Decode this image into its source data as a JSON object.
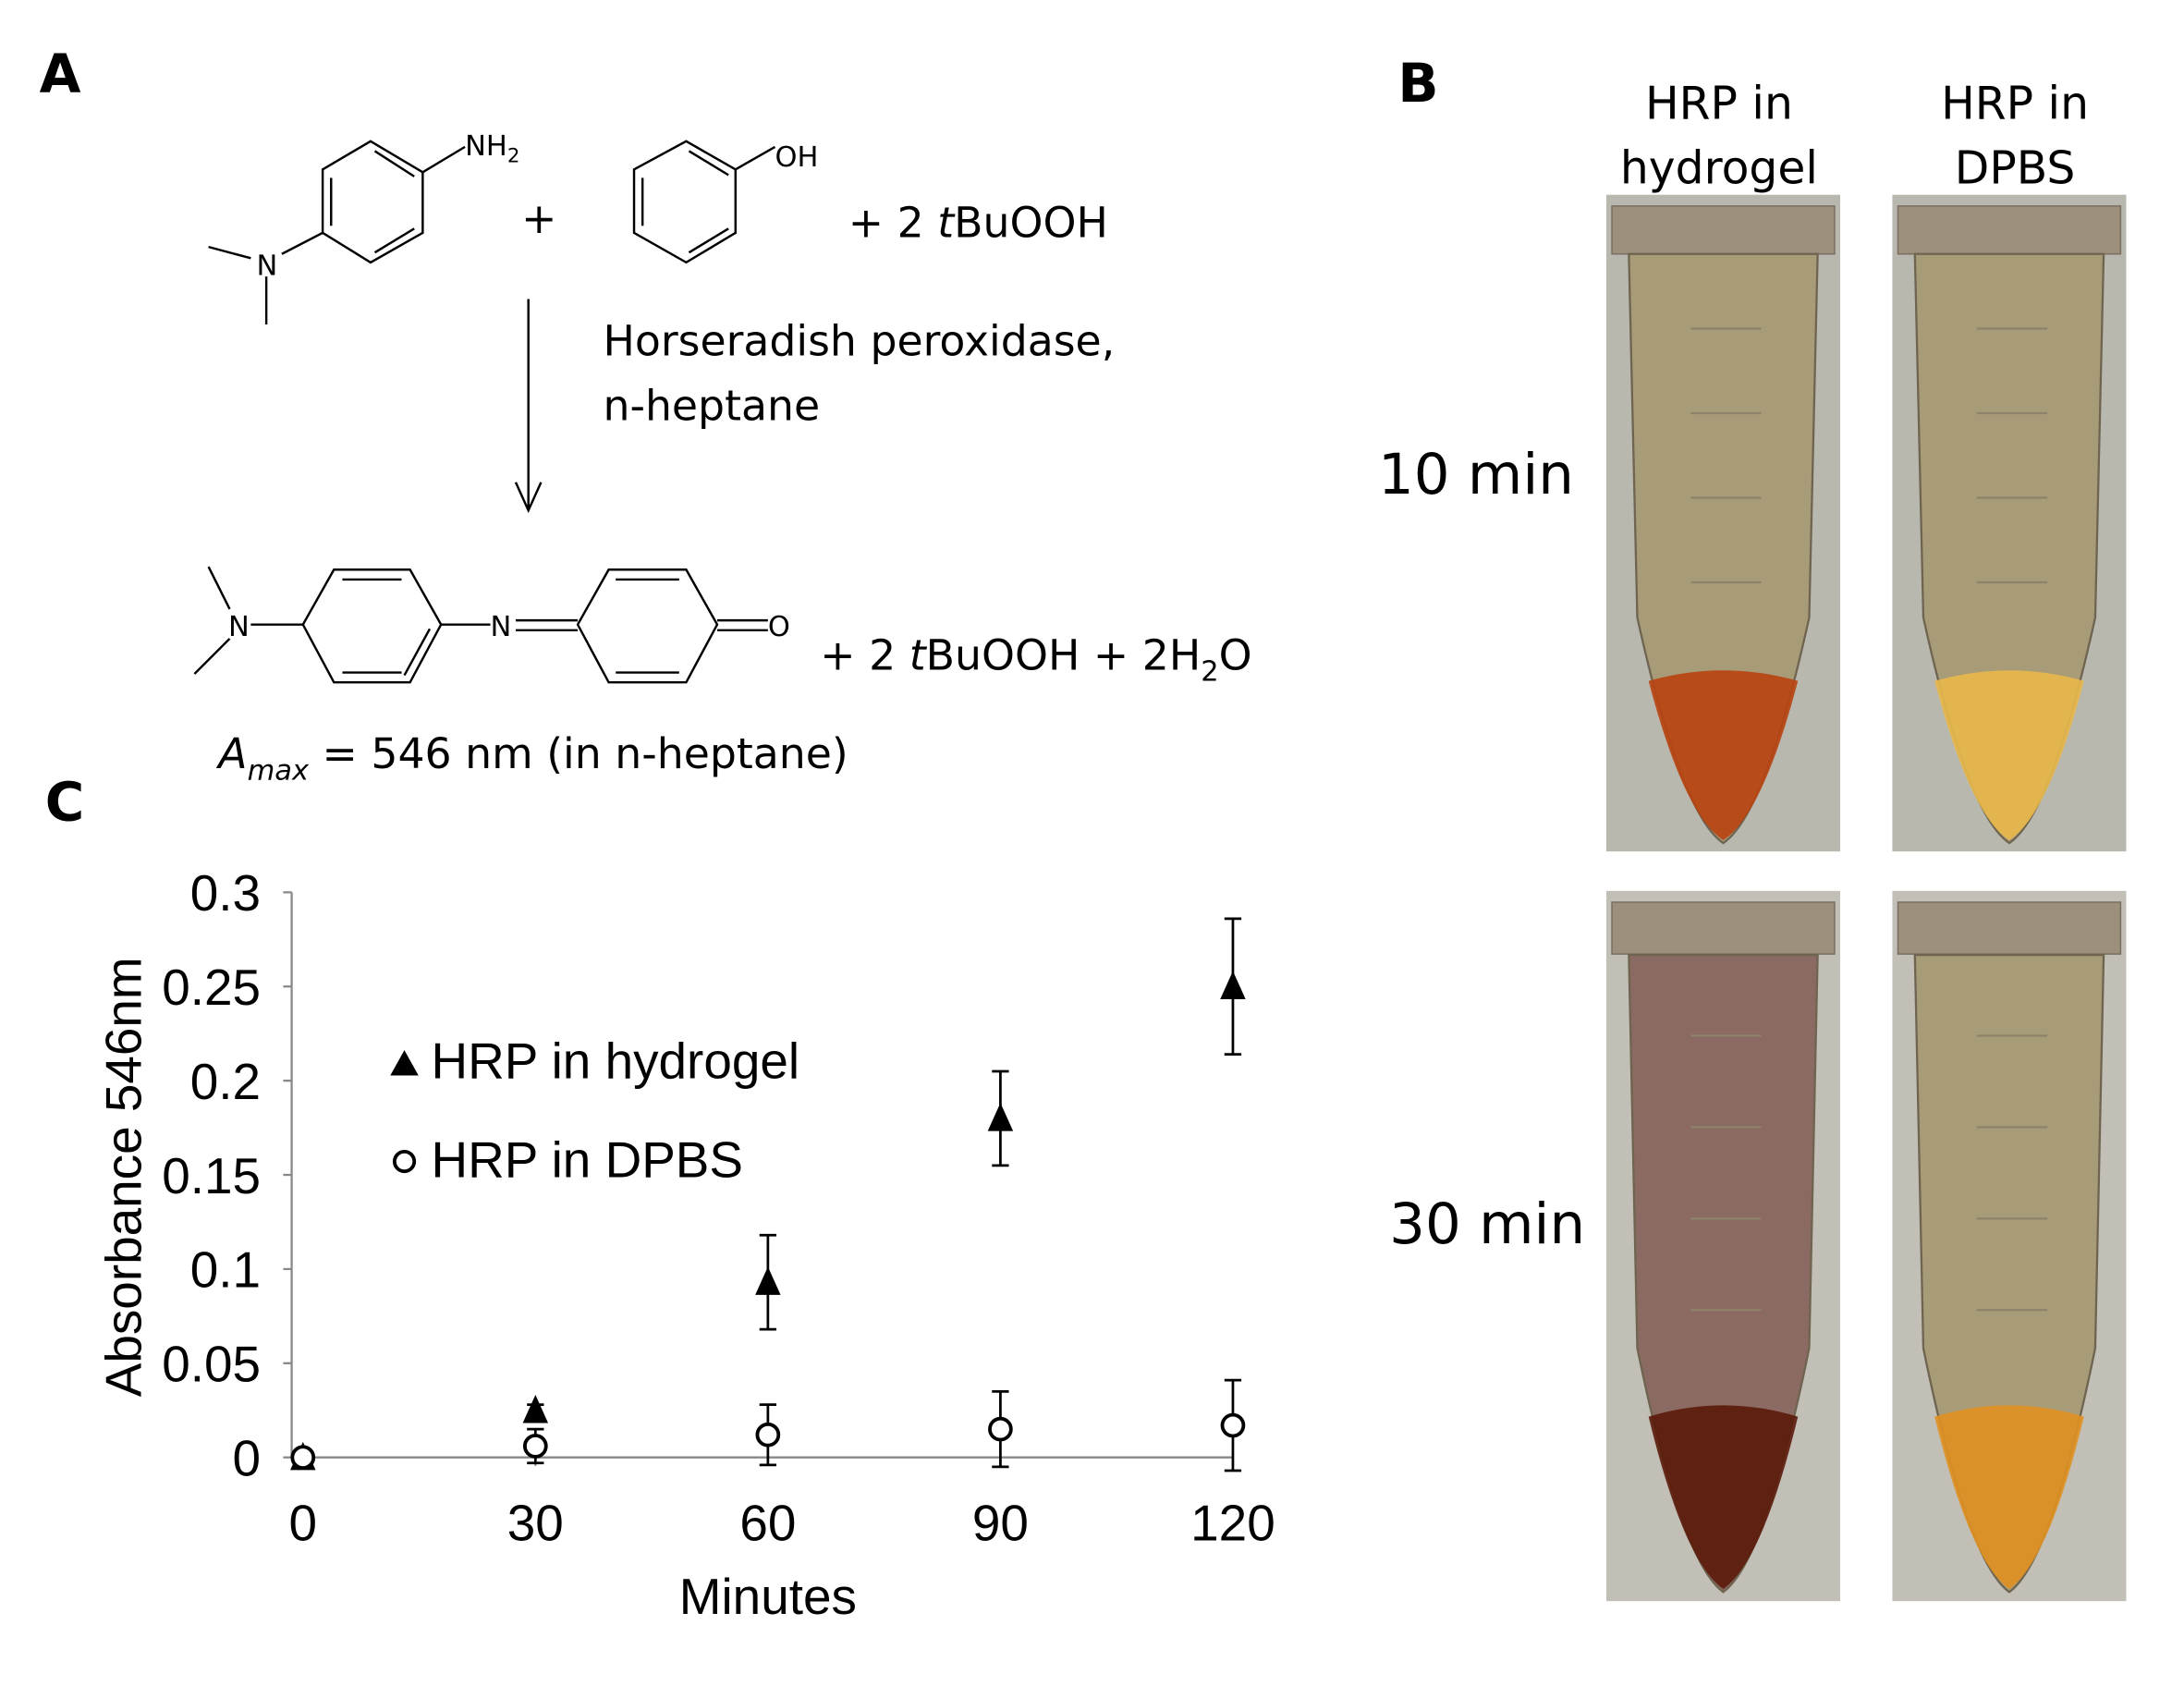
{
  "panels": {
    "a": "A",
    "b": "B",
    "c": "C"
  },
  "reaction": {
    "reactant1_group": "NH2",
    "reactant1_group_base": "NH",
    "reactant1_group_sub": "2",
    "reactant1_atom": "N",
    "plus": "+",
    "reactant2_group": "OH",
    "reagent": "+ 2 ",
    "reagent_italic": "t",
    "reagent_rest": "BuOOH",
    "conditions_line1": "Horseradish peroxidase,",
    "conditions_line2": "n-heptane",
    "product_n1": "N",
    "product_n2": "N",
    "product_o": "O",
    "byproducts_a": "+ 2 ",
    "byproducts_italic": "t",
    "byproducts_b": "BuOOH + 2H",
    "byproducts_sub": "2",
    "byproducts_c": "O",
    "amax_a": "A",
    "amax_sub": "max",
    "amax_rest": " = 546 nm (in n-heptane)"
  },
  "photos": {
    "col_labels": [
      [
        "HRP in",
        "hydrogel"
      ],
      [
        "HRP in",
        "DPBS"
      ]
    ],
    "row_labels": [
      "10 min",
      "30 min"
    ],
    "liquid_colors": [
      [
        "#b8420f",
        "#e8b84a"
      ],
      [
        "#5a1a0a",
        "#e09020"
      ]
    ]
  },
  "chart_data": {
    "type": "scatter",
    "xlabel": "Minutes",
    "ylabel": "Absorbance 546nm",
    "xlim": [
      0,
      120
    ],
    "ylim": [
      0,
      0.3
    ],
    "xticks": [
      "0",
      "30",
      "60",
      "90",
      "120"
    ],
    "yticks": [
      "0",
      "0.05",
      "0.1",
      "0.15",
      "0.2",
      "0.25",
      "0.3"
    ],
    "grid": false,
    "legend_placement": "top-left",
    "series": [
      {
        "name": "HRP in hydrogel",
        "marker": "filled-triangle",
        "x": [
          0,
          30,
          60,
          90,
          120
        ],
        "y": [
          0,
          0.025,
          0.093,
          0.18,
          0.25
        ],
        "error": [
          0.001,
          0.003,
          0.025,
          0.025,
          0.036
        ]
      },
      {
        "name": "HRP in DPBS",
        "marker": "open-circle",
        "x": [
          0,
          30,
          60,
          90,
          120
        ],
        "y": [
          0,
          0.006,
          0.012,
          0.015,
          0.017
        ],
        "error": [
          0.001,
          0.009,
          0.016,
          0.02,
          0.024
        ]
      }
    ]
  }
}
